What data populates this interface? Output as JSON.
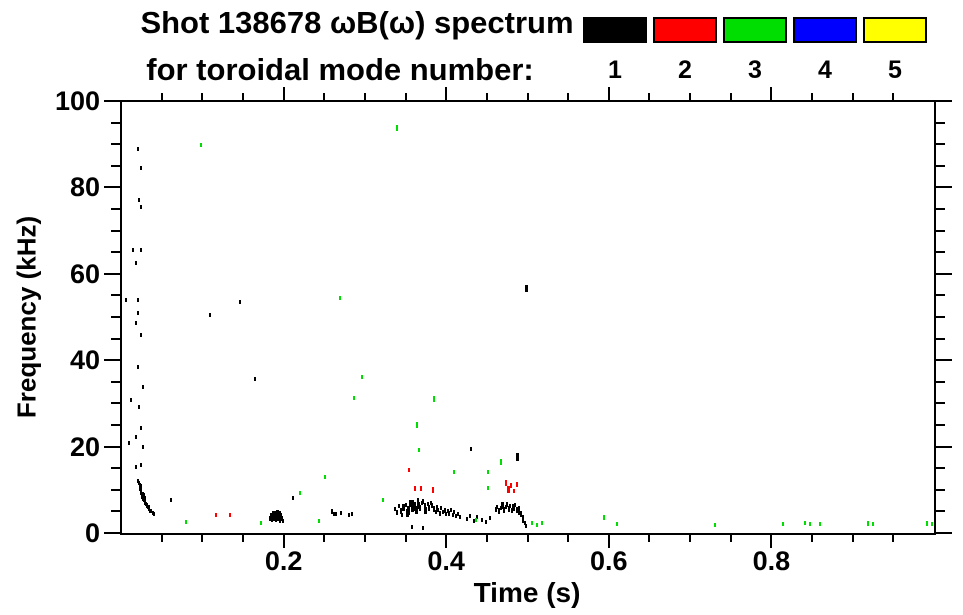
{
  "title": {
    "line1": "Shot 138678 ωB(ω) spectrum",
    "line2": "for toroidal mode number:"
  },
  "legend": {
    "items": [
      {
        "label": "1",
        "color": "#000000"
      },
      {
        "label": "2",
        "color": "#ff0000"
      },
      {
        "label": "3",
        "color": "#00dd00"
      },
      {
        "label": "4",
        "color": "#0000ff"
      },
      {
        "label": "5",
        "color": "#ffff00"
      }
    ]
  },
  "chart_data": {
    "type": "scatter",
    "title": "Shot 138678 ωB(ω) spectrum for toroidal mode number: 1-5",
    "xlabel": "Time (s)",
    "ylabel": "Frequency (kHz)",
    "xlim": [
      0,
      1.0
    ],
    "ylim": [
      0,
      100
    ],
    "x_major_ticks": [
      0.2,
      0.4,
      0.6,
      0.8
    ],
    "x_tick_labels": [
      "0.2",
      "0.4",
      "0.6",
      "0.8"
    ],
    "x_minor_step": 0.05,
    "y_major_ticks": [
      0,
      20,
      40,
      60,
      80,
      100
    ],
    "y_tick_labels": [
      "0",
      "20",
      "40",
      "60",
      "80",
      "100"
    ],
    "y_minor_step": 5,
    "grid": false,
    "legend_position": "top-right",
    "series": [
      {
        "name": "n=1",
        "color": "#000000",
        "points": [
          [
            0.021,
            89.0
          ],
          [
            0.025,
            84.5
          ],
          [
            0.022,
            77.0
          ],
          [
            0.025,
            75.5
          ],
          [
            0.015,
            65.5
          ],
          [
            0.025,
            65.5
          ],
          [
            0.019,
            62.5
          ],
          [
            0.006,
            54.0
          ],
          [
            0.021,
            54.0
          ],
          [
            0.146,
            53.5
          ],
          [
            0.021,
            51.0
          ],
          [
            0.109,
            50.5
          ],
          [
            0.018,
            48.5
          ],
          [
            0.024,
            45.8
          ],
          [
            0.021,
            38.4
          ],
          [
            0.027,
            33.8
          ],
          [
            0.165,
            35.6
          ],
          [
            0.012,
            30.8
          ],
          [
            0.022,
            29.2
          ],
          [
            0.025,
            24.3
          ],
          [
            0.019,
            22.2
          ],
          [
            0.027,
            20.0
          ],
          [
            0.01,
            20.8
          ],
          [
            0.018,
            15.2
          ],
          [
            0.024,
            15.7
          ],
          [
            0.021,
            12.1
          ],
          [
            0.022,
            11.5
          ],
          [
            0.023,
            11.0
          ],
          [
            0.023,
            10.3
          ],
          [
            0.024,
            10.7,
            5
          ],
          [
            0.024,
            9.8
          ],
          [
            0.025,
            10.1
          ],
          [
            0.025,
            9.4,
            6
          ],
          [
            0.026,
            8.9,
            6
          ],
          [
            0.026,
            8.4
          ],
          [
            0.027,
            8.7,
            7
          ],
          [
            0.027,
            8.0,
            5
          ],
          [
            0.028,
            7.8,
            6
          ],
          [
            0.028,
            8.9
          ],
          [
            0.029,
            7.3,
            6
          ],
          [
            0.029,
            8.2
          ],
          [
            0.03,
            7.0,
            5
          ],
          [
            0.031,
            6.7
          ],
          [
            0.032,
            6.4,
            5
          ],
          [
            0.033,
            6.1
          ],
          [
            0.034,
            5.8,
            5
          ],
          [
            0.035,
            5.5
          ],
          [
            0.036,
            5.2
          ],
          [
            0.037,
            5.0
          ],
          [
            0.039,
            4.7
          ],
          [
            0.04,
            4.5
          ],
          [
            0.061,
            7.6
          ],
          [
            0.183,
            3.4,
            5
          ],
          [
            0.184,
            4.0,
            6
          ],
          [
            0.186,
            3.1,
            5
          ],
          [
            0.187,
            4.3,
            7
          ],
          [
            0.188,
            3.6,
            8
          ],
          [
            0.19,
            4.1,
            8
          ],
          [
            0.191,
            3.2,
            6
          ],
          [
            0.192,
            4.5,
            7
          ],
          [
            0.193,
            3.8,
            8
          ],
          [
            0.195,
            4.2,
            7
          ],
          [
            0.196,
            3.0,
            5
          ],
          [
            0.197,
            4.0,
            6
          ],
          [
            0.198,
            3.4,
            5
          ],
          [
            0.199,
            2.8
          ],
          [
            0.211,
            8.1
          ],
          [
            0.26,
            4.9,
            5
          ],
          [
            0.262,
            4.5
          ],
          [
            0.264,
            4.3
          ],
          [
            0.27,
            4.6
          ],
          [
            0.281,
            4.1
          ],
          [
            0.284,
            4.4
          ],
          [
            0.337,
            5.5
          ],
          [
            0.34,
            4.8,
            5
          ],
          [
            0.342,
            6.2
          ],
          [
            0.344,
            5.0,
            6
          ],
          [
            0.346,
            4.2
          ],
          [
            0.348,
            5.8,
            7
          ],
          [
            0.35,
            6.5
          ],
          [
            0.352,
            4.6,
            8
          ],
          [
            0.354,
            5.2,
            9
          ],
          [
            0.356,
            6.8,
            7
          ],
          [
            0.358,
            5.9,
            8
          ],
          [
            0.359,
            7.2
          ],
          [
            0.361,
            6.1,
            9
          ],
          [
            0.363,
            5.4,
            8
          ],
          [
            0.365,
            7.6
          ],
          [
            0.366,
            6.4,
            7
          ],
          [
            0.368,
            5.7,
            6
          ],
          [
            0.37,
            6.9
          ],
          [
            0.372,
            7.4,
            5
          ],
          [
            0.374,
            6.2,
            6
          ],
          [
            0.375,
            5.1,
            7
          ],
          [
            0.377,
            6.6
          ],
          [
            0.379,
            5.8,
            6
          ],
          [
            0.381,
            7.0
          ],
          [
            0.383,
            6.3,
            5
          ],
          [
            0.385,
            5.5,
            6
          ],
          [
            0.387,
            4.9
          ],
          [
            0.389,
            6.0,
            5
          ],
          [
            0.39,
            5.3
          ],
          [
            0.392,
            4.5,
            5
          ],
          [
            0.394,
            5.7
          ],
          [
            0.396,
            4.8
          ],
          [
            0.398,
            5.2,
            5
          ],
          [
            0.4,
            4.4
          ],
          [
            0.402,
            5.0
          ],
          [
            0.404,
            4.6,
            5
          ],
          [
            0.406,
            5.4
          ],
          [
            0.408,
            4.1
          ],
          [
            0.41,
            4.8
          ],
          [
            0.412,
            3.9
          ],
          [
            0.414,
            4.3
          ],
          [
            0.417,
            3.6
          ],
          [
            0.358,
            1.4
          ],
          [
            0.371,
            1.2
          ],
          [
            0.425,
            3.3
          ],
          [
            0.429,
            4.0
          ],
          [
            0.434,
            2.8
          ],
          [
            0.438,
            3.7
          ],
          [
            0.444,
            3.1
          ],
          [
            0.449,
            2.5
          ],
          [
            0.454,
            3.4
          ],
          [
            0.431,
            19.4
          ],
          [
            0.461,
            5.5,
            5
          ],
          [
            0.463,
            6.1
          ],
          [
            0.465,
            5.0,
            6
          ],
          [
            0.467,
            5.8
          ],
          [
            0.469,
            6.4,
            7
          ],
          [
            0.471,
            5.3,
            6
          ],
          [
            0.473,
            6.0
          ],
          [
            0.475,
            6.6,
            5
          ],
          [
            0.477,
            5.6,
            6
          ],
          [
            0.479,
            6.2
          ],
          [
            0.481,
            5.1,
            5
          ],
          [
            0.483,
            5.9,
            7
          ],
          [
            0.485,
            6.5
          ],
          [
            0.487,
            5.4,
            6
          ],
          [
            0.488,
            17.6,
            8
          ],
          [
            0.489,
            4.8,
            5
          ],
          [
            0.49,
            5.7
          ],
          [
            0.492,
            4.3,
            6
          ],
          [
            0.494,
            3.6
          ],
          [
            0.495,
            2.8,
            5
          ],
          [
            0.497,
            2.2
          ],
          [
            0.498,
            1.6
          ],
          [
            0.499,
            56.5,
            7
          ]
        ]
      },
      {
        "name": "n=2",
        "color": "#ff0000",
        "points": [
          [
            0.117,
            4.2
          ],
          [
            0.134,
            4.2
          ],
          [
            0.354,
            14.6
          ],
          [
            0.362,
            10.4,
            5
          ],
          [
            0.369,
            10.4,
            5
          ],
          [
            0.384,
            9.9,
            6
          ],
          [
            0.474,
            11.6,
            6
          ],
          [
            0.477,
            10.1,
            7
          ],
          [
            0.48,
            11.0,
            5
          ],
          [
            0.483,
            9.7
          ],
          [
            0.487,
            11.3,
            5
          ]
        ]
      },
      {
        "name": "n=3",
        "color": "#00dd00",
        "points": [
          [
            0.08,
            2.5
          ],
          [
            0.099,
            89.8
          ],
          [
            0.172,
            2.3
          ],
          [
            0.22,
            9.3
          ],
          [
            0.243,
            2.8
          ],
          [
            0.251,
            13.0
          ],
          [
            0.269,
            54.4
          ],
          [
            0.287,
            31.2
          ],
          [
            0.296,
            36.1
          ],
          [
            0.322,
            7.6
          ],
          [
            0.34,
            93.8,
            6
          ],
          [
            0.364,
            25.0,
            6
          ],
          [
            0.367,
            19.2
          ],
          [
            0.385,
            31.0,
            6
          ],
          [
            0.409,
            14.1
          ],
          [
            0.437,
            3.0
          ],
          [
            0.451,
            14.1
          ],
          [
            0.452,
            10.4
          ],
          [
            0.468,
            16.4,
            6
          ],
          [
            0.506,
            2.3
          ],
          [
            0.512,
            1.9
          ],
          [
            0.518,
            2.3
          ],
          [
            0.594,
            3.5,
            5
          ],
          [
            0.61,
            2.1
          ],
          [
            0.731,
            1.9
          ],
          [
            0.814,
            2.1
          ],
          [
            0.841,
            2.3
          ],
          [
            0.848,
            2.1
          ],
          [
            0.86,
            2.1
          ],
          [
            0.919,
            2.3,
            5
          ],
          [
            0.925,
            2.1
          ],
          [
            0.992,
            2.3,
            5
          ],
          [
            0.997,
            2.1
          ]
        ]
      },
      {
        "name": "n=4",
        "color": "#0000ff",
        "points": []
      },
      {
        "name": "n=5",
        "color": "#ffff00",
        "points": []
      }
    ]
  }
}
